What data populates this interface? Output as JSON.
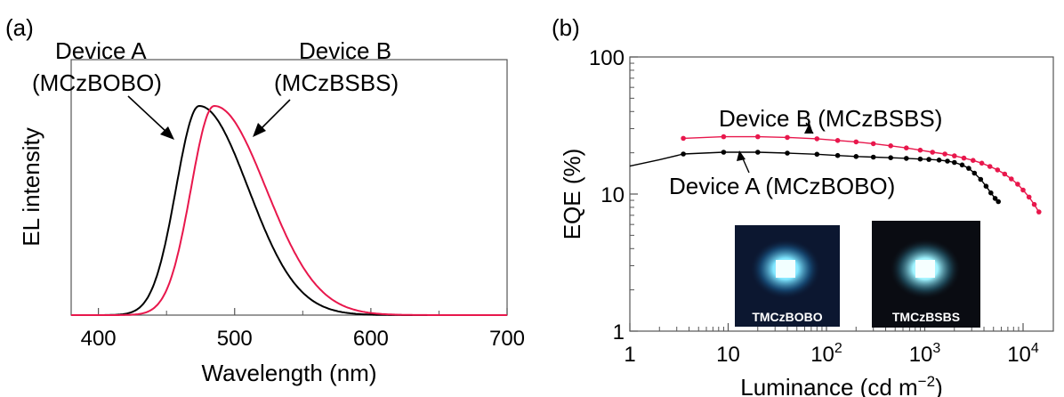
{
  "chart_data": [
    {
      "panel_label": "(a)",
      "type": "line",
      "xlabel": "Wavelength (nm)",
      "ylabel": "EL intensity",
      "xlim": [
        380,
        700
      ],
      "xticks": [
        400,
        500,
        600,
        700
      ],
      "y_ticks_shown": false,
      "series": [
        {
          "name": "Device A (MCzBOBO)",
          "label_device": "Device ",
          "label_letter": "A",
          "label_material": "(MCzBOBO)",
          "color": "#000000",
          "peak": 474,
          "width_left": 17,
          "width_right": 36,
          "values_note": ""
        },
        {
          "name": "Device B (MCzBSBS)",
          "label_device": "Device ",
          "label_letter": "B",
          "label_material": "(MCzBSBS)",
          "color": "#e8174c",
          "peak": 485,
          "width_left": 17,
          "width_right": 38,
          "values_note": ""
        }
      ]
    },
    {
      "panel_label": "(b)",
      "type": "scatter",
      "xlabel": "Luminance (cd m",
      "xlabel_sup": "−2",
      "xlabel_end": ")",
      "ylabel": "EQE (%)",
      "xscale": "log",
      "yscale": "log",
      "xlim": [
        1,
        15000
      ],
      "ylim": [
        1,
        100
      ],
      "xticks": [
        {
          "base": "1",
          "exp": ""
        },
        {
          "base": "10",
          "exp": ""
        },
        {
          "base": "10",
          "exp": "2"
        },
        {
          "base": "10",
          "exp": "3"
        },
        {
          "base": "10",
          "exp": "4"
        }
      ],
      "yticks": [
        "1",
        "10",
        "100"
      ],
      "series": [
        {
          "name": "Device B (MCzBSBS)",
          "label_device": "Device ",
          "label_letter": "B",
          "label_material": " (MCzBSBS)",
          "color": "#e8174c",
          "x": [
            3.5,
            9,
            20,
            40,
            80,
            130,
            200,
            300,
            450,
            650,
            900,
            1200,
            1600,
            2000,
            2500,
            3100,
            3800,
            4600,
            5500,
            6500,
            7600,
            8800,
            10000,
            11500,
            13000,
            14500
          ],
          "y": [
            25.5,
            26.2,
            26.2,
            25.9,
            25.3,
            24.6,
            24.0,
            23.3,
            22.5,
            21.7,
            20.9,
            20.2,
            19.6,
            19.0,
            18.3,
            17.6,
            16.8,
            15.9,
            15.0,
            14.0,
            12.9,
            11.8,
            10.7,
            9.5,
            8.4,
            7.4
          ]
        },
        {
          "name": "Device A (MCzBOBO)",
          "label_device": "Device ",
          "label_letter": "A",
          "label_material": " (MCzBOBO)",
          "color": "#000000",
          "x": [
            3.5,
            9,
            20,
            40,
            80,
            130,
            200,
            300,
            450,
            650,
            900,
            1100,
            1400,
            1700,
            2000,
            2400,
            2800,
            3200,
            3700,
            4200,
            4700,
            5200,
            5600
          ],
          "y": [
            19.6,
            20.2,
            20.2,
            19.9,
            19.5,
            19.1,
            18.8,
            18.6,
            18.4,
            18.2,
            18.0,
            17.9,
            17.7,
            17.4,
            17.0,
            16.3,
            15.4,
            14.2,
            12.8,
            11.4,
            10.2,
            9.3,
            8.8
          ],
          "low_luminance_x": [
            1,
            2,
            3.5
          ],
          "low_luminance_y": [
            16.0,
            17.8,
            19.6
          ]
        }
      ],
      "inset_photos": [
        {
          "caption": "TMCzBOBO"
        },
        {
          "caption": "TMCzBSBS"
        }
      ]
    }
  ]
}
